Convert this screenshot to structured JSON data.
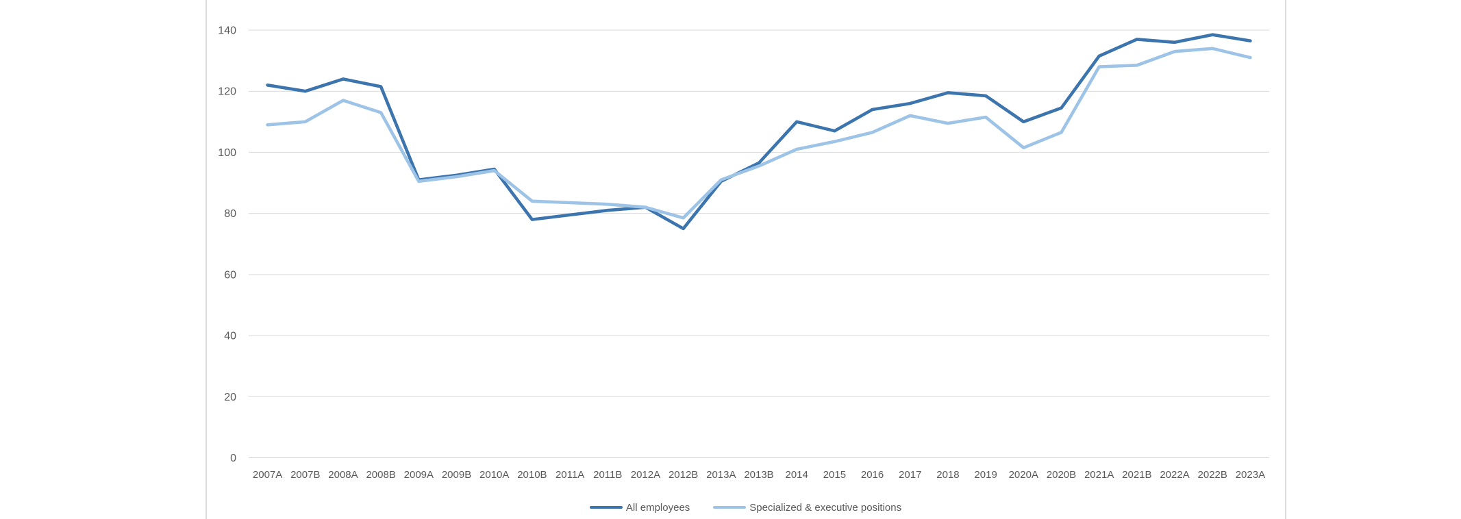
{
  "chart_data": {
    "type": "line",
    "title": "",
    "categories": [
      "2007A",
      "2007B",
      "2008A",
      "2008B",
      "2009A",
      "2009B",
      "2010A",
      "2010B",
      "2011A",
      "2011B",
      "2012A",
      "2012B",
      "2013A",
      "2013B",
      "2014",
      "2015",
      "2016",
      "2017",
      "2018",
      "2019",
      "2020A",
      "2020B",
      "2021A",
      "2021B",
      "2022A",
      "2022B",
      "2023A"
    ],
    "series": [
      {
        "name": "All employees",
        "color": "#3c74ad",
        "values": [
          122,
          120,
          124,
          121.5,
          91,
          92.5,
          94.5,
          78,
          79.5,
          81,
          82,
          75,
          90.5,
          96.5,
          110,
          107,
          114,
          116,
          119.5,
          118.5,
          110,
          114.5,
          131.5,
          137,
          136,
          138.5,
          136.5
        ]
      },
      {
        "name": "Specialized & executive positions",
        "color": "#9dc3e6",
        "values": [
          109,
          110,
          117,
          113,
          90.5,
          92,
          94,
          84,
          83.5,
          83,
          82,
          78.5,
          91,
          95.5,
          101,
          103.5,
          106.5,
          112,
          109.5,
          111.5,
          101.5,
          106.5,
          128,
          128.5,
          133,
          134,
          131
        ]
      }
    ],
    "ylim": [
      0,
      140
    ],
    "ytick_labels": [
      "0",
      "20",
      "40",
      "60",
      "80",
      "100",
      "120",
      "140"
    ],
    "grid": true,
    "legend_position": "bottom",
    "axis_label_color": "#595959",
    "gridline_color": "#d9d9d9"
  },
  "panel": {
    "border_color": "#dcdcdc",
    "background": "#ffffff"
  }
}
